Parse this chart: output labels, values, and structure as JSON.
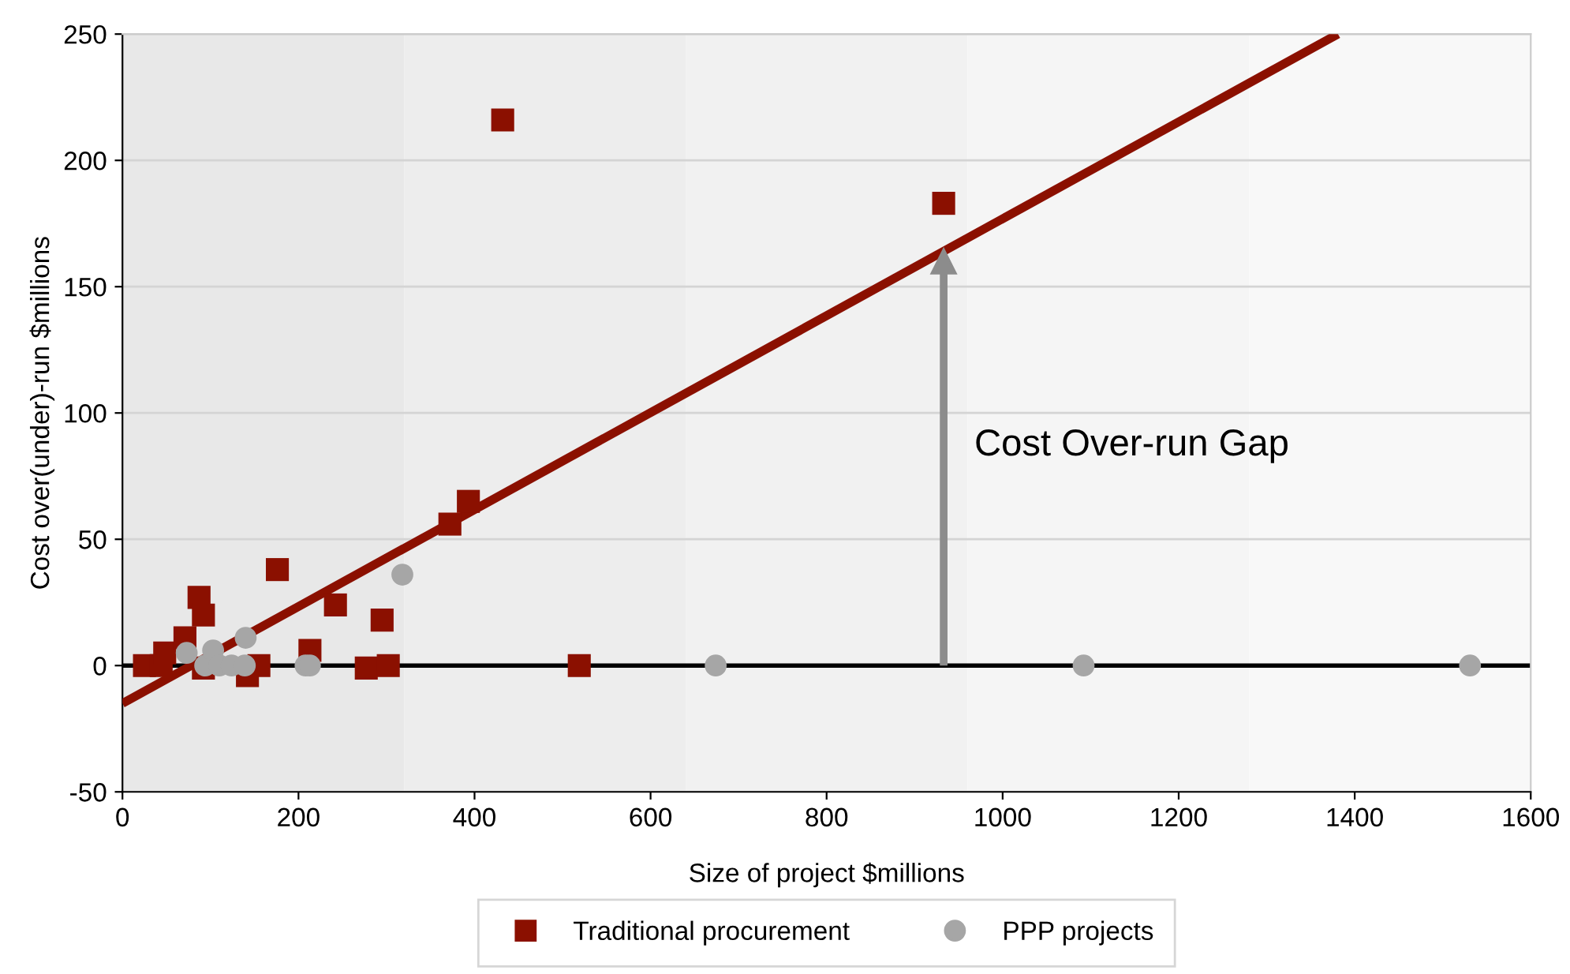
{
  "chart_data": {
    "type": "scatter",
    "xlabel": "Size of project $millions",
    "ylabel": "Cost over(under)-run $millions",
    "xlim": [
      0,
      1600
    ],
    "xticks": [
      0,
      200,
      400,
      600,
      800,
      1000,
      1200,
      1400,
      1600
    ],
    "ylim": [
      -50,
      250
    ],
    "yticks": [
      -50,
      0,
      50,
      100,
      150,
      200,
      250
    ],
    "grid": "y",
    "legend": "bottom",
    "series": [
      {
        "name": "Traditional procurement",
        "color": "#8b1000",
        "marker": "square",
        "x": [
          25,
          44,
          48,
          71,
          87,
          92,
          92,
          142,
          155,
          176,
          213,
          242,
          277,
          295,
          302,
          372,
          393,
          432,
          519,
          933
        ],
        "values": [
          0,
          0,
          5,
          11,
          27,
          20,
          -1,
          -4,
          0,
          38,
          6,
          24,
          -1,
          18,
          0,
          56,
          65,
          216,
          0,
          183
        ]
      },
      {
        "name": "PPP projects",
        "color": "#a6a6a6",
        "marker": "circle",
        "x": [
          73,
          94,
          103,
          110,
          124,
          139,
          140,
          208,
          213,
          318,
          674,
          1092,
          1531
        ],
        "values": [
          5,
          0,
          6,
          0,
          0,
          0,
          11,
          0,
          0,
          36,
          0,
          0,
          0
        ]
      },
      {
        "type": "line",
        "color": "#8b1000",
        "marker": "none",
        "x": [
          0,
          1381
        ],
        "values": [
          -15,
          250
        ]
      },
      {
        "type": "line",
        "color": "#8c8c8c",
        "marker": "triangle",
        "x": [
          933,
          933
        ],
        "values": [
          0,
          160
        ]
      }
    ],
    "ref_lines": [
      {
        "axis": "y",
        "value": 0,
        "color": "#000000"
      }
    ],
    "bands": [
      {
        "axis": "x",
        "from": 0,
        "to": 320,
        "color": "#e8e8e8"
      },
      {
        "axis": "x",
        "from": 320,
        "to": 640,
        "color": "#ededed"
      },
      {
        "axis": "x",
        "from": 640,
        "to": 960,
        "color": "#f1f1f1"
      },
      {
        "axis": "x",
        "from": 960,
        "to": 1280,
        "color": "#f5f5f5"
      },
      {
        "axis": "x",
        "from": 1280,
        "to": 1600,
        "color": "#f8f8f8"
      }
    ],
    "annotations": [
      {
        "text": "Cost Over-run Gap",
        "x": 933,
        "y": 87
      }
    ]
  }
}
